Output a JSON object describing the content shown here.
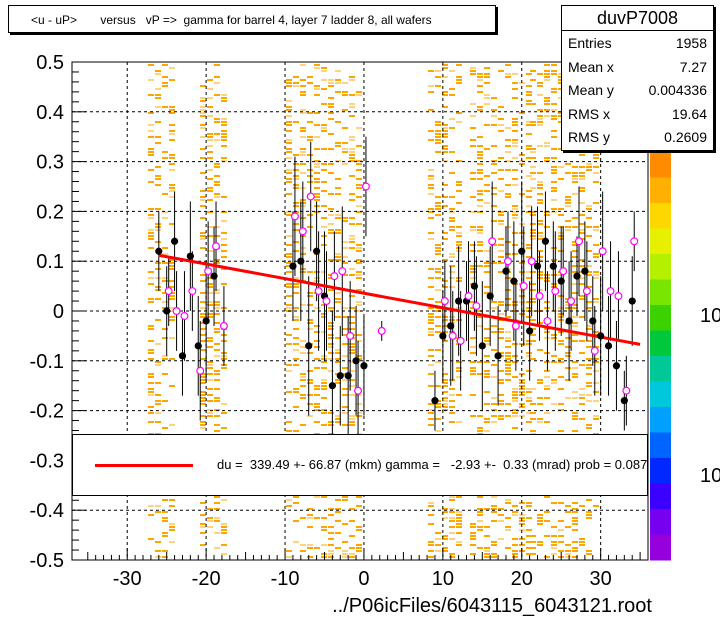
{
  "title": "<u - uP>       versus   vP =>  gamma for barrel 4, layer 7 ladder 8, all wafers",
  "stats": {
    "name": "duvP7008",
    "rows": [
      {
        "label": "Entries",
        "value": "1958"
      },
      {
        "label": "Mean x",
        "value": "7.27"
      },
      {
        "label": "Mean y",
        "value": "0.004336"
      },
      {
        "label": "RMS x",
        "value": "19.64"
      },
      {
        "label": "RMS y",
        "value": "0.2609"
      }
    ]
  },
  "fit_legend": {
    "text": "du =  339.49 +- 66.87 (mkm) gamma =   -2.93 +-  0.33 (mrad) prob = 0.087",
    "line_color": "#ff0000"
  },
  "colors": {
    "fit_line": "#ff0000",
    "open_marker": "#ff00ff",
    "filled_marker": "#000000",
    "hist_cells": "#ffa500",
    "hist_cells_light": "#ffd280"
  },
  "chart_data": {
    "type": "scatter",
    "xlabel": "../P06icFiles/6043115_6043121.root",
    "xlim": [
      -37,
      36
    ],
    "ylim": [
      -0.5,
      0.5
    ],
    "x_ticks": [
      -30,
      -20,
      -10,
      0,
      10,
      20,
      30
    ],
    "x_tick_labels": [
      "-30",
      "-20",
      "-10",
      "0",
      "10",
      "20",
      "30"
    ],
    "y_ticks": [
      0.5,
      0.4,
      0.3,
      0.2,
      0.1,
      0,
      -0.1,
      -0.2,
      -0.3,
      -0.4,
      -0.5
    ],
    "y_tick_labels": [
      "0.5",
      "0.4",
      "0.3",
      "0.2",
      "0.1",
      "0",
      "-0.1",
      "-0.2",
      "-0.3",
      "-0.4",
      "-0.5"
    ],
    "grid": true,
    "palette_labels": [
      "10",
      "10"
    ],
    "fit_line": {
      "x": [
        -26,
        35
      ],
      "y": [
        0.112,
        -0.067
      ]
    },
    "series": [
      {
        "marker": "filled",
        "x": [
          -26,
          -25,
          -24,
          -23,
          -22,
          -21,
          -20,
          -19,
          -9,
          -8,
          -7,
          -6,
          -5,
          -4,
          -3,
          -2,
          -1,
          0,
          9,
          10,
          11,
          12,
          13,
          14,
          15,
          16,
          17,
          18,
          19,
          20,
          21,
          22,
          23,
          24,
          25,
          26,
          27,
          28,
          29,
          30,
          31,
          32,
          33,
          34
        ],
        "y": [
          0.12,
          0.0,
          0.14,
          -0.09,
          0.11,
          -0.07,
          -0.02,
          0.07,
          0.09,
          0.1,
          -0.07,
          0.12,
          0.03,
          -0.15,
          -0.13,
          -0.13,
          -0.1,
          -0.11,
          -0.18,
          -0.05,
          -0.03,
          0.02,
          0.02,
          0.05,
          -0.07,
          0.03,
          -0.09,
          0.08,
          0.06,
          0.12,
          -0.04,
          0.09,
          0.14,
          0.09,
          0.06,
          -0.02,
          0.07,
          0.08,
          -0.02,
          -0.05,
          -0.07,
          -0.11,
          -0.18,
          0.02
        ],
        "err": [
          0.08,
          0.09,
          0.1,
          0.08,
          0.11,
          0.1,
          0.12,
          0.1,
          0.11,
          0.12,
          0.14,
          0.1,
          0.13,
          0.15,
          0.1,
          0.12,
          0.11,
          0.1,
          0.06,
          0.09,
          0.12,
          0.11,
          0.08,
          0.09,
          0.13,
          0.1,
          0.1,
          0.09,
          0.12,
          0.14,
          0.1,
          0.12,
          0.1,
          0.09,
          0.11,
          0.12,
          0.08,
          0.1,
          0.09,
          0.12,
          0.1,
          0.09,
          0.06,
          0.09
        ]
      },
      {
        "marker": "open",
        "x": [
          -25,
          -24,
          -23,
          -22,
          -21,
          -20,
          -19,
          -18,
          -9,
          -8,
          -7,
          -6,
          -5,
          -4,
          -3,
          -2,
          -1,
          0,
          2,
          10,
          11,
          12,
          13,
          14,
          16,
          18,
          19,
          20,
          21,
          22,
          23,
          24,
          25,
          26,
          27,
          28,
          29,
          30,
          31,
          32,
          33,
          34
        ],
        "y": [
          0.04,
          0.0,
          -0.01,
          0.04,
          -0.12,
          0.08,
          0.13,
          -0.03,
          0.19,
          0.16,
          0.23,
          0.04,
          0.02,
          0.07,
          0.08,
          -0.05,
          -0.16,
          0.25,
          -0.04,
          0.02,
          -0.05,
          -0.06,
          0.03,
          0.01,
          0.14,
          0.1,
          -0.03,
          0.05,
          0.1,
          0.03,
          -0.02,
          0.04,
          0.08,
          0.02,
          0.14,
          0.04,
          -0.08,
          0.12,
          0.04,
          0.03,
          -0.16,
          0.14
        ],
        "err": [
          0.07,
          0.08,
          0.09,
          0.08,
          0.1,
          0.1,
          0.09,
          0.08,
          0.12,
          0.1,
          0.11,
          0.12,
          0.1,
          0.09,
          0.13,
          0.11,
          0.1,
          0.1,
          0.02,
          0.08,
          0.09,
          0.1,
          0.11,
          0.1,
          0.12,
          0.1,
          0.09,
          0.12,
          0.11,
          0.09,
          0.1,
          0.12,
          0.09,
          0.1,
          0.11,
          0.1,
          0.09,
          0.12,
          0.1,
          0.09,
          0.07,
          0.06
        ]
      }
    ]
  }
}
